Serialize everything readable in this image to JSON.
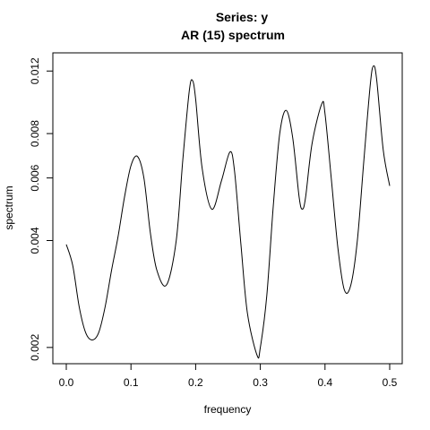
{
  "chart_data": {
    "type": "line",
    "title": "Series: y",
    "subtitle": "AR (15) spectrum",
    "xlabel": "frequency",
    "ylabel": "spectrum",
    "xlim": [
      0,
      0.5
    ],
    "ylim": [
      0.0018,
      0.0135
    ],
    "y_scale": "log",
    "grid": false,
    "x_ticks": [
      0.0,
      0.1,
      0.2,
      0.3,
      0.4,
      0.5
    ],
    "x_tick_labels": [
      "0.0",
      "0.1",
      "0.2",
      "0.3",
      "0.4",
      "0.5"
    ],
    "y_ticks": [
      0.002,
      0.004,
      0.006,
      0.008,
      0.012
    ],
    "y_tick_labels": [
      "0.002",
      "0.004",
      "0.006",
      "0.008",
      "0.012"
    ],
    "series": [
      {
        "color": "#000000",
        "x": [
          0.0,
          0.01,
          0.02,
          0.03,
          0.04,
          0.05,
          0.06,
          0.07,
          0.08,
          0.09,
          0.1,
          0.11,
          0.12,
          0.13,
          0.14,
          0.155,
          0.17,
          0.18,
          0.19,
          0.195,
          0.2,
          0.21,
          0.225,
          0.24,
          0.253,
          0.26,
          0.27,
          0.28,
          0.295,
          0.3,
          0.31,
          0.32,
          0.33,
          0.34,
          0.35,
          0.36,
          0.365,
          0.37,
          0.38,
          0.395,
          0.4,
          0.41,
          0.42,
          0.43,
          0.44,
          0.45,
          0.46,
          0.47,
          0.475,
          0.48,
          0.49,
          0.5
        ],
        "y": [
          0.0039,
          0.0034,
          0.0026,
          0.0022,
          0.0021,
          0.0022,
          0.0026,
          0.0033,
          0.0041,
          0.0053,
          0.0065,
          0.0069,
          0.006,
          0.0042,
          0.0033,
          0.003,
          0.004,
          0.0067,
          0.0105,
          0.0113,
          0.01,
          0.0064,
          0.0049,
          0.0059,
          0.0071,
          0.0063,
          0.0039,
          0.0025,
          0.0019,
          0.002,
          0.0028,
          0.005,
          0.008,
          0.0093,
          0.0078,
          0.0053,
          0.0049,
          0.0053,
          0.0075,
          0.0097,
          0.0091,
          0.0059,
          0.0038,
          0.0029,
          0.003,
          0.004,
          0.0067,
          0.011,
          0.0124,
          0.0113,
          0.0072,
          0.0057
        ]
      }
    ]
  }
}
